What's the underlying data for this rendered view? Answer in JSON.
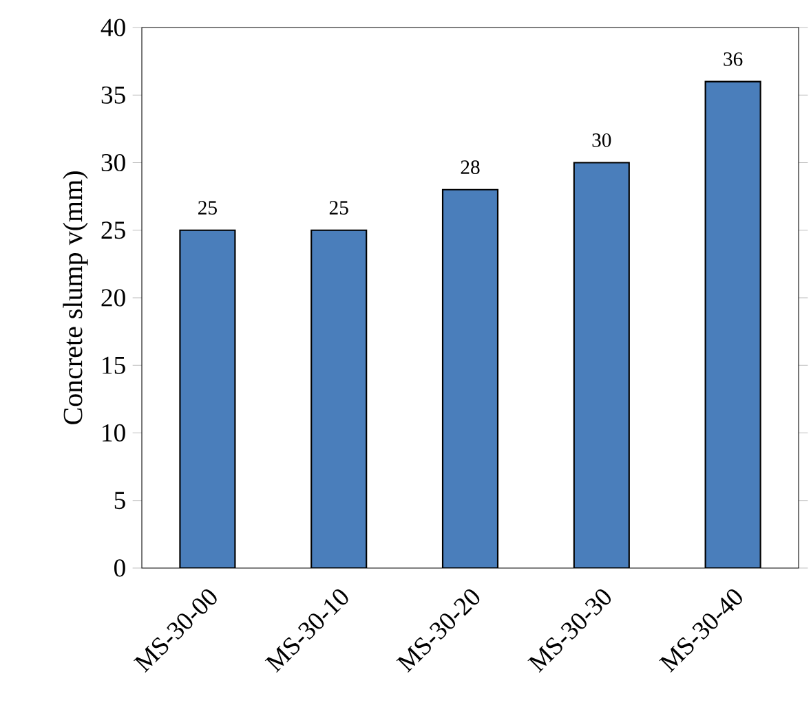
{
  "chart_data": {
    "type": "bar",
    "ylabel": "Concrete slump v(mm)",
    "categories": [
      "MS-30-00",
      "MS-30-10",
      "MS-30-20",
      "MS-30-30",
      "MS-30-40"
    ],
    "values": [
      25,
      25,
      28,
      30,
      36
    ],
    "color": "#4a7ebb",
    "data_labels": true,
    "ylim": [
      0,
      40
    ],
    "yticks": [
      0,
      5,
      10,
      15,
      20,
      25,
      30,
      35,
      40
    ],
    "grid": false
  }
}
